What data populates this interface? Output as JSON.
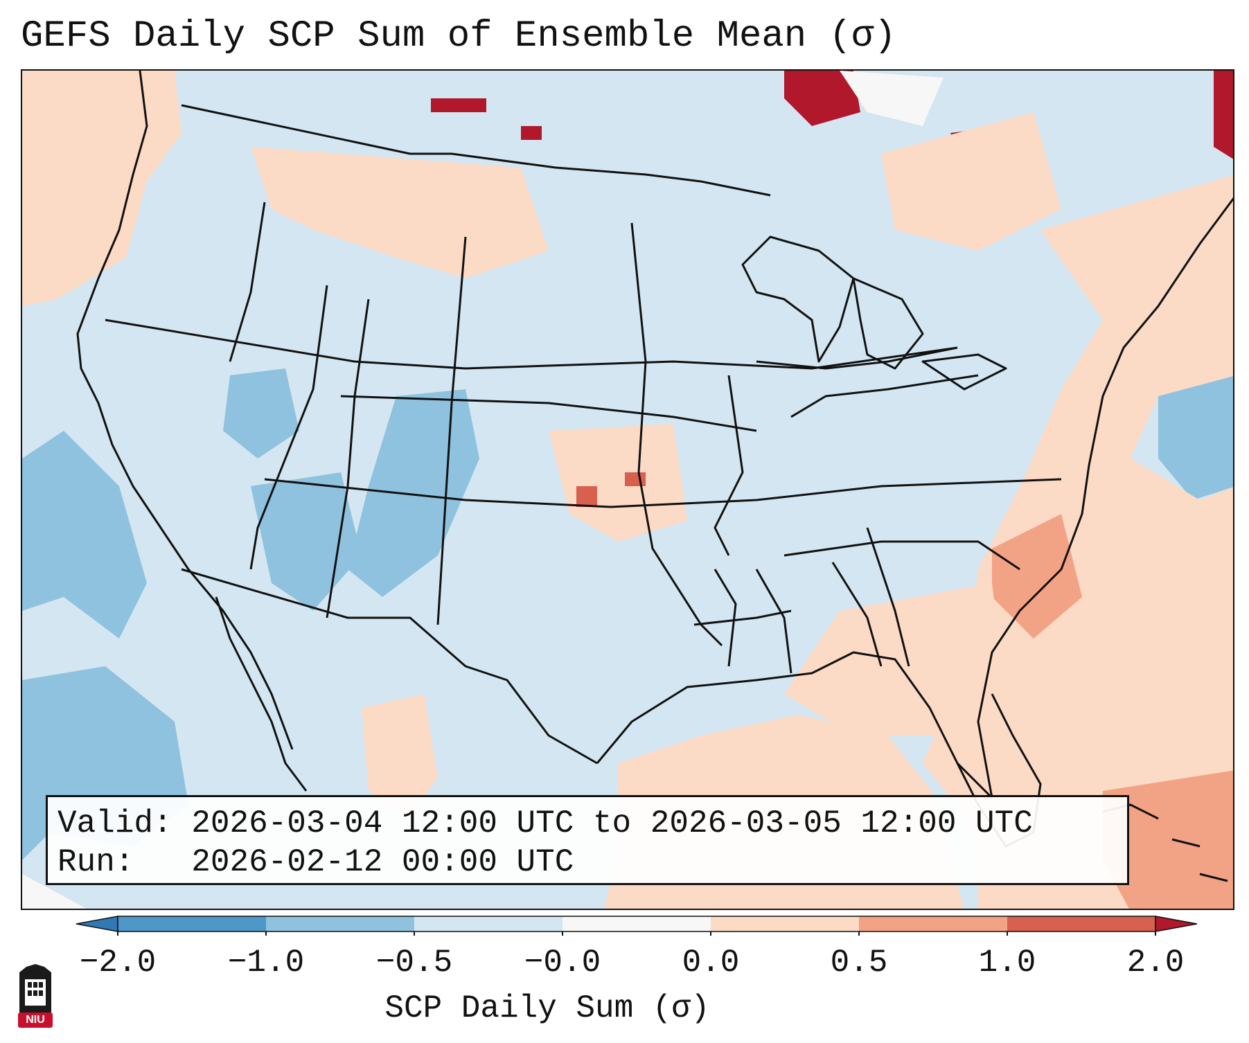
{
  "title": "GEFS Daily SCP Sum of Ensemble Mean (σ)",
  "info": {
    "valid_label": "Valid:",
    "valid_value": "2026-03-04 12:00 UTC to 2026-03-05 12:00 UTC",
    "run_label": "Run:",
    "run_value": "2026-02-12 00:00 UTC"
  },
  "colorbar": {
    "title": "SCP Daily Sum (σ)",
    "ticks": [
      "−2.0",
      "−1.0",
      "−0.5",
      "−0.0",
      "0.0",
      "0.5",
      "1.0",
      "2.0"
    ],
    "bins": [
      {
        "range": "< -2.0",
        "color": "#2f79b5"
      },
      {
        "range": "-2.0 to -1.0",
        "color": "#4e97c7"
      },
      {
        "range": "-1.0 to -0.5",
        "color": "#8fc2de"
      },
      {
        "range": "-0.5 to -0.0",
        "color": "#d3e6f1"
      },
      {
        "range": "-0.0 to 0.0",
        "color": "#f7f7f7"
      },
      {
        "range": "0.0 to 0.5",
        "color": "#fbdac6"
      },
      {
        "range": "0.5 to 1.0",
        "color": "#f2a385"
      },
      {
        "range": "1.0 to 2.0",
        "color": "#d7604e"
      },
      {
        "range": "> 2.0",
        "color": "#b1182b"
      }
    ]
  },
  "logo": {
    "text": "NIU",
    "color": "#c8102e"
  },
  "colors": {
    "neg_small": "#d3e6f1",
    "neg_mid": "#8fc2de",
    "pos_small": "#fbdac6",
    "pos_mid": "#f2a385",
    "pos_high": "#d7604e",
    "pos_extreme": "#b1182b",
    "neutral": "#f7f7f7"
  }
}
